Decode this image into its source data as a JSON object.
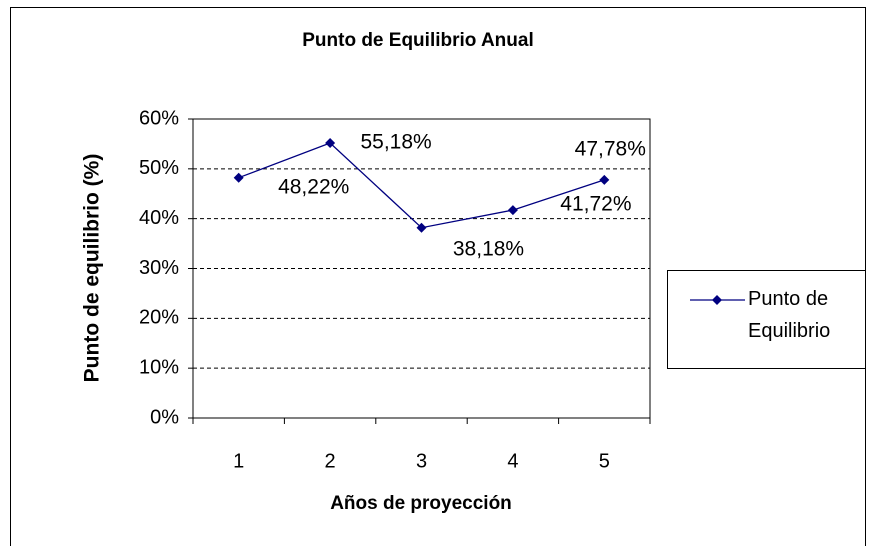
{
  "chart_data": {
    "type": "line",
    "title": "Punto de Equilibrio Anual",
    "x_label": "Años de proyección",
    "y_label": "Punto de equilibrio (%)",
    "categories": [
      "1",
      "2",
      "3",
      "4",
      "5"
    ],
    "series": [
      {
        "name": "Punto de Equilibrio",
        "color": "#000080",
        "values": [
          48.22,
          55.18,
          38.18,
          41.72,
          47.78
        ],
        "value_labels": [
          "48,22%",
          "55,18%",
          "38,18%",
          "41,72%",
          "47,78%"
        ]
      }
    ],
    "ylim": [
      0,
      60
    ],
    "yticks": [
      {
        "value": 0,
        "label": "0%"
      },
      {
        "value": 10,
        "label": "10%"
      },
      {
        "value": 20,
        "label": "20%"
      },
      {
        "value": 30,
        "label": "30%"
      },
      {
        "value": 40,
        "label": "40%"
      },
      {
        "value": 50,
        "label": "50%"
      },
      {
        "value": 60,
        "label": "60%"
      }
    ],
    "grid": true,
    "legend": "right"
  }
}
